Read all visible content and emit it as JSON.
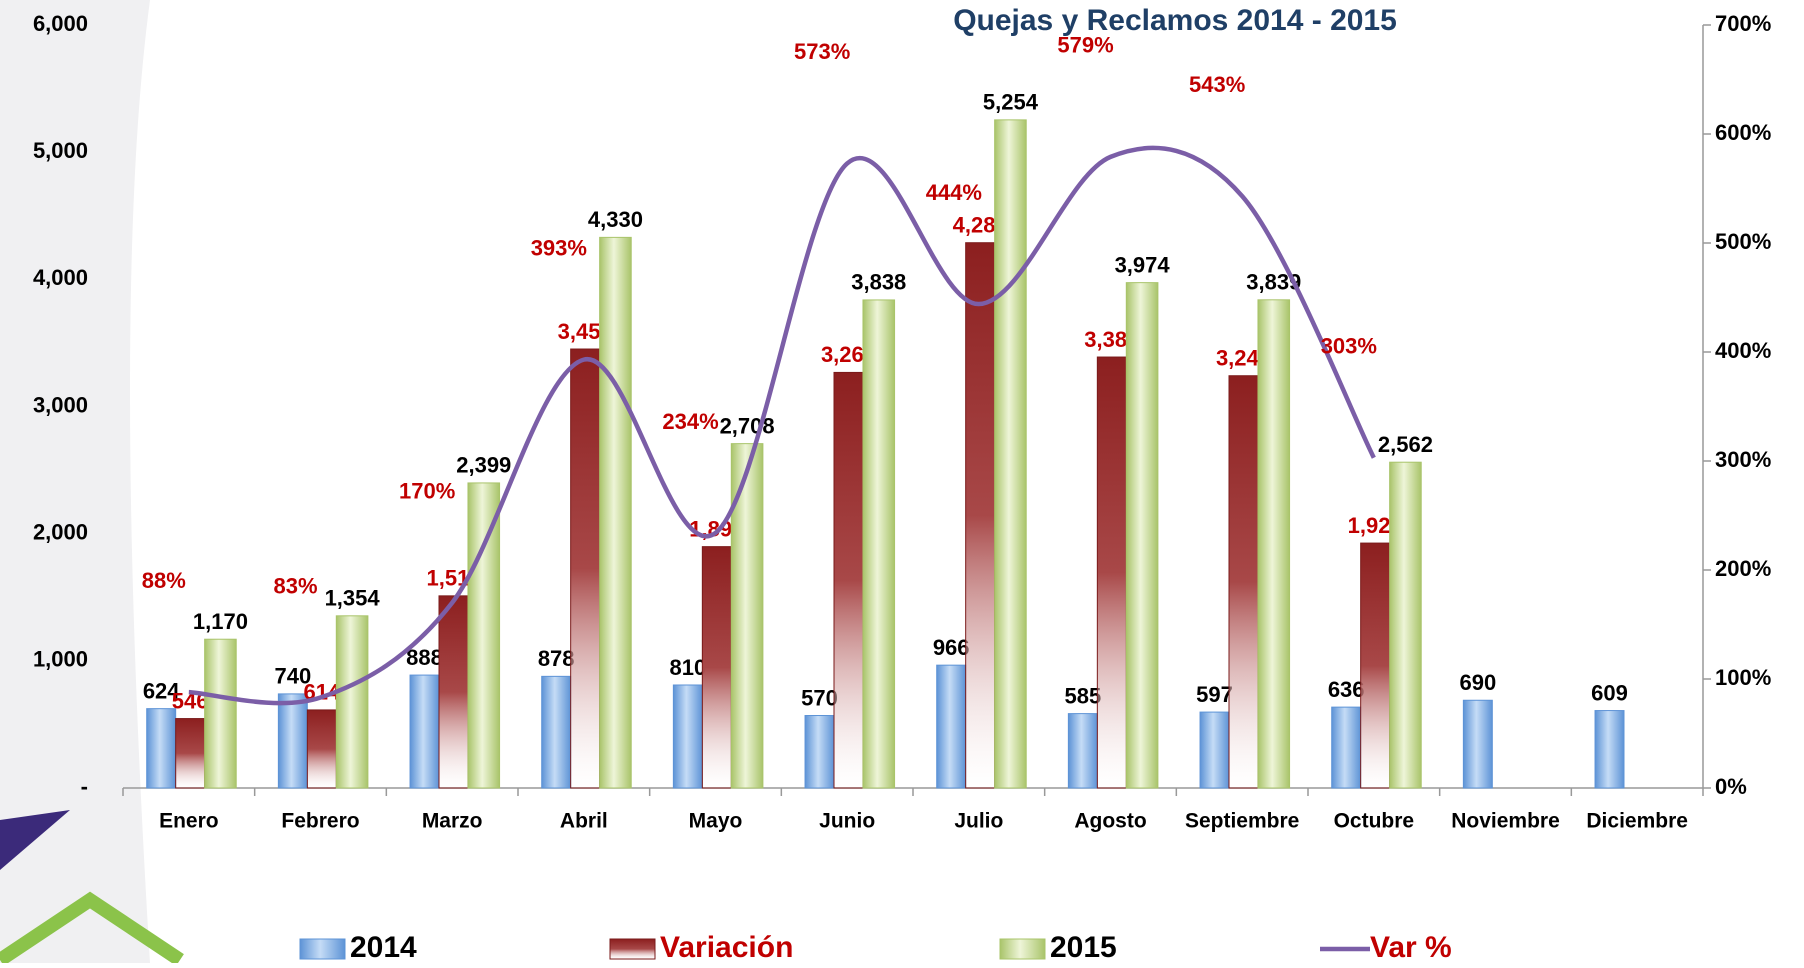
{
  "chart_data": {
    "type": "bar",
    "title": "Quejas y Reclamos 2014 - 2015",
    "categories": [
      "Enero",
      "Febrero",
      "Marzo",
      "Abril",
      "Mayo",
      "Junio",
      "Julio",
      "Agosto",
      "Septiembre",
      "Octubre",
      "Noviembre",
      "Diciembre"
    ],
    "series": [
      {
        "name": "2014",
        "color": "#7aaee6",
        "values": [
          624,
          740,
          888,
          878,
          810,
          570,
          966,
          585,
          597,
          636,
          690,
          609
        ],
        "value_labels": [
          "624",
          "740",
          "888",
          "878",
          "810",
          "570",
          "966",
          "585",
          "597",
          "636",
          "690",
          "609"
        ]
      },
      {
        "name": "Variación",
        "color": "#9b2a2a",
        "values": [
          546,
          614,
          1511,
          3452,
          1898,
          3268,
          4288,
          3389,
          3242,
          1926,
          null,
          null
        ],
        "value_labels": [
          "546",
          "614",
          "1,511",
          "3,452",
          "1,898",
          "3,268",
          "4,288",
          "3,389",
          "3,242",
          "1,926",
          null,
          null
        ]
      },
      {
        "name": "2015",
        "color": "#c8dc98",
        "values": [
          1170,
          1354,
          2399,
          4330,
          2708,
          3838,
          5254,
          3974,
          3839,
          2562,
          null,
          null
        ],
        "value_labels": [
          "1,170",
          "1,354",
          "2,399",
          "4,330",
          "2,708",
          "3,838",
          "5,254",
          "3,974",
          "3,839",
          "2,562",
          null,
          null
        ]
      },
      {
        "name": "Var %",
        "color": "#7b5ea7",
        "axis": "y2",
        "type": "line",
        "values": [
          88,
          83,
          170,
          393,
          234,
          573,
          444,
          579,
          543,
          303,
          null,
          null
        ],
        "value_labels": [
          "88%",
          "83%",
          "170%",
          "393%",
          "234%",
          "573%",
          "444%",
          "579%",
          "543%",
          "303%",
          null,
          null
        ]
      }
    ],
    "ylim": [
      0,
      6000
    ],
    "yticks": [
      {
        "value": 0,
        "label": "-"
      },
      {
        "value": 1000,
        "label": "1,000"
      },
      {
        "value": 2000,
        "label": "2,000"
      },
      {
        "value": 3000,
        "label": "3,000"
      },
      {
        "value": 4000,
        "label": "4,000"
      },
      {
        "value": 5000,
        "label": "5,000"
      },
      {
        "value": 6000,
        "label": "6,000"
      }
    ],
    "y2lim": [
      0,
      700
    ],
    "y2ticks": [
      {
        "value": 0,
        "label": "0%"
      },
      {
        "value": 100,
        "label": "100%"
      },
      {
        "value": 200,
        "label": "200%"
      },
      {
        "value": 300,
        "label": "300%"
      },
      {
        "value": 400,
        "label": "400%"
      },
      {
        "value": 500,
        "label": "500%"
      },
      {
        "value": 600,
        "label": "600%"
      },
      {
        "value": 700,
        "label": "700%"
      }
    ],
    "legend": "bottom"
  }
}
